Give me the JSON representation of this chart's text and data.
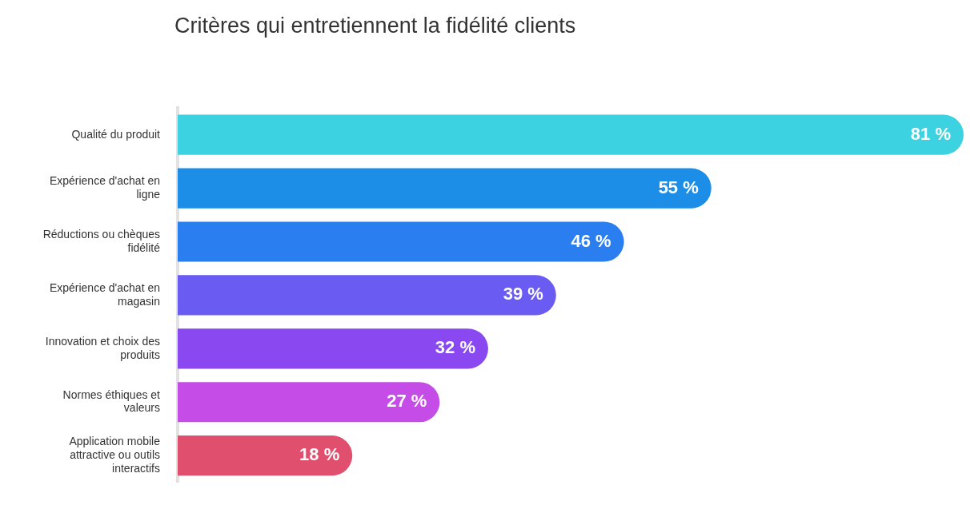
{
  "chart_data": {
    "type": "bar",
    "orientation": "horizontal",
    "title": "Critères qui entretiennent la fidélité clients",
    "categories": [
      "Qualité du produit",
      "Expérience d'achat en ligne",
      "Réductions ou chèques fidélité",
      "Expérience d'achat en magasin",
      "Innovation et choix des produits",
      "Normes éthiques et valeurs",
      "Application mobile attractive ou outils interactifs"
    ],
    "values": [
      81,
      55,
      46,
      39,
      32,
      27,
      18
    ],
    "value_labels": [
      "81 %",
      "55 %",
      "46 %",
      "39 %",
      "32 %",
      "27 %",
      "18 %"
    ],
    "colors": [
      "#3cd2e2",
      "#1c8ee8",
      "#2a7ef0",
      "#6a5cf2",
      "#8a48f0",
      "#c64ce8",
      "#e0506e"
    ],
    "legend": false
  }
}
